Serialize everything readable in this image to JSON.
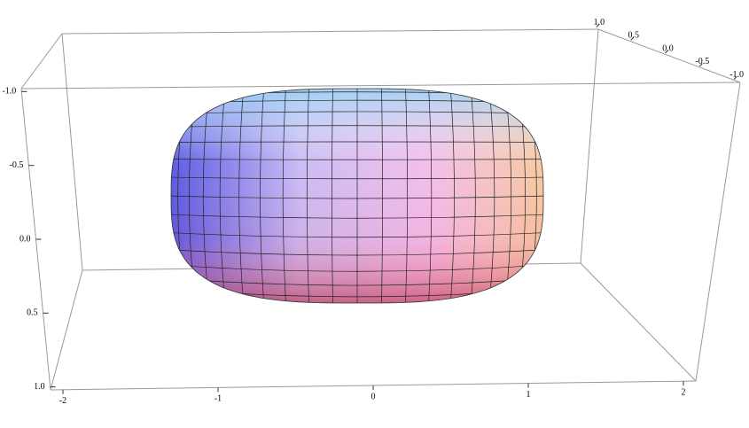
{
  "chart_data": {
    "type": "surface3d",
    "xlim": [
      -2.08,
      2.08
    ],
    "xticks": [
      -2,
      -1,
      0,
      1,
      2
    ],
    "ylim": [
      1.05,
      -1.05
    ],
    "yticks": [
      {
        "value": 1,
        "label": "1.0"
      },
      {
        "value": 0.5,
        "label": "0.5"
      },
      {
        "value": 0,
        "label": "0.0"
      },
      {
        "value": -0.5,
        "label": "-0.5"
      },
      {
        "value": -1,
        "label": "-1.0"
      }
    ],
    "zlim": [
      -1.02,
      1.02
    ],
    "zticks": [
      {
        "value": 1,
        "label": "1.0"
      },
      {
        "value": 0.5,
        "label": "0.5"
      },
      {
        "value": 0,
        "label": "0.0"
      },
      {
        "value": -0.5,
        "label": "-0.5"
      },
      {
        "value": -1,
        "label": "-1.0"
      }
    ]
  }
}
